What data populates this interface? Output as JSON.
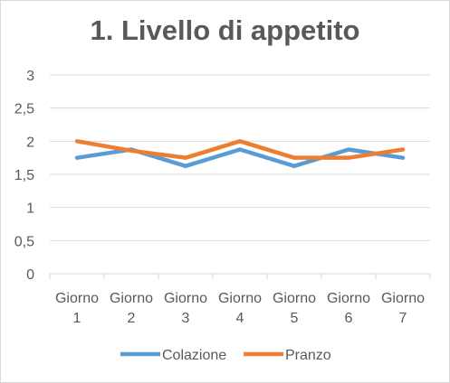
{
  "chart_data": {
    "type": "line",
    "title": "1. Livello di appetito",
    "categories": [
      "Giorno 1",
      "Giorno 2",
      "Giorno 3",
      "Giorno 4",
      "Giorno 5",
      "Giorno 6",
      "Giorno 7"
    ],
    "category_lines": [
      [
        "Giorno",
        "1"
      ],
      [
        "Giorno",
        "2"
      ],
      [
        "Giorno",
        "3"
      ],
      [
        "Giorno",
        "4"
      ],
      [
        "Giorno",
        "5"
      ],
      [
        "Giorno",
        "6"
      ],
      [
        "Giorno",
        "7"
      ]
    ],
    "yticks": [
      "0",
      "0,5",
      "1",
      "1,5",
      "2",
      "2,5",
      "3"
    ],
    "ylim": [
      0,
      3
    ],
    "grid": true,
    "legend_position": "bottom",
    "series": [
      {
        "name": "Colazione",
        "color": "#5b9bd5",
        "values": [
          1.75,
          1.875,
          1.625,
          1.875,
          1.625,
          1.875,
          1.75
        ]
      },
      {
        "name": "Pranzo",
        "color": "#ed7d31",
        "values": [
          2.0,
          1.857,
          1.75,
          2.0,
          1.75,
          1.75,
          1.875
        ]
      }
    ]
  }
}
